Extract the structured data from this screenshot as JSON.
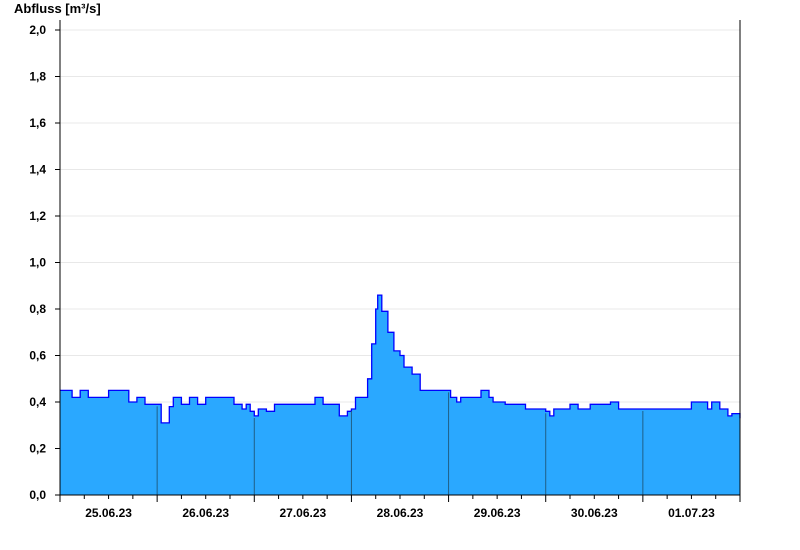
{
  "chart_data": {
    "type": "area",
    "ylabel": "Abfluss [m³/s]",
    "ylim": [
      0,
      2.0
    ],
    "yticks": [
      "0,0",
      "0,2",
      "0,4",
      "0,6",
      "0,8",
      "1,0",
      "1,2",
      "1,4",
      "1,6",
      "1,8",
      "2,0"
    ],
    "xlim": [
      "2023-06-25T00:00",
      "2023-07-02T00:00"
    ],
    "xticks": [
      "25.06.23",
      "26.06.23",
      "27.06.23",
      "28.06.23",
      "29.06.23",
      "30.06.23",
      "01.07.23"
    ],
    "grid": true,
    "fill_color": "#2aa8ff",
    "line_color": "#0000ff",
    "series": [
      {
        "points": [
          [
            "2023-06-25T00:00",
            0.45
          ],
          [
            "2023-06-25T03:00",
            0.42
          ],
          [
            "2023-06-25T05:00",
            0.45
          ],
          [
            "2023-06-25T07:00",
            0.42
          ],
          [
            "2023-06-25T10:00",
            0.42
          ],
          [
            "2023-06-25T12:00",
            0.45
          ],
          [
            "2023-06-25T16:00",
            0.45
          ],
          [
            "2023-06-25T17:00",
            0.4
          ],
          [
            "2023-06-25T19:00",
            0.42
          ],
          [
            "2023-06-25T21:00",
            0.39
          ],
          [
            "2023-06-25T24:00",
            0.39
          ],
          [
            "2023-06-26T01:00",
            0.31
          ],
          [
            "2023-06-26T03:00",
            0.38
          ],
          [
            "2023-06-26T04:00",
            0.42
          ],
          [
            "2023-06-26T06:00",
            0.39
          ],
          [
            "2023-06-26T08:00",
            0.42
          ],
          [
            "2023-06-26T10:00",
            0.39
          ],
          [
            "2023-06-26T12:00",
            0.42
          ],
          [
            "2023-06-26T18:00",
            0.42
          ],
          [
            "2023-06-26T19:00",
            0.39
          ],
          [
            "2023-06-26T21:00",
            0.37
          ],
          [
            "2023-06-26T22:00",
            0.39
          ],
          [
            "2023-06-26T23:00",
            0.36
          ],
          [
            "2023-06-27T00:00",
            0.34
          ],
          [
            "2023-06-27T01:00",
            0.37
          ],
          [
            "2023-06-27T03:00",
            0.36
          ],
          [
            "2023-06-27T05:00",
            0.39
          ],
          [
            "2023-06-27T14:00",
            0.39
          ],
          [
            "2023-06-27T15:00",
            0.42
          ],
          [
            "2023-06-27T17:00",
            0.39
          ],
          [
            "2023-06-27T20:00",
            0.39
          ],
          [
            "2023-06-27T21:00",
            0.34
          ],
          [
            "2023-06-27T23:00",
            0.36
          ],
          [
            "2023-06-28T00:00",
            0.37
          ],
          [
            "2023-06-28T01:00",
            0.42
          ],
          [
            "2023-06-28T03:00",
            0.42
          ],
          [
            "2023-06-28T04:00",
            0.5
          ],
          [
            "2023-06-28T05:00",
            0.65
          ],
          [
            "2023-06-28T06:00",
            0.8
          ],
          [
            "2023-06-28T06:30",
            0.86
          ],
          [
            "2023-06-28T07:30",
            0.79
          ],
          [
            "2023-06-28T09:00",
            0.7
          ],
          [
            "2023-06-28T10:30",
            0.62
          ],
          [
            "2023-06-28T12:00",
            0.6
          ],
          [
            "2023-06-28T13:00",
            0.55
          ],
          [
            "2023-06-28T15:00",
            0.52
          ],
          [
            "2023-06-28T17:00",
            0.45
          ],
          [
            "2023-06-28T24:00",
            0.45
          ],
          [
            "2023-06-29T00:30",
            0.42
          ],
          [
            "2023-06-29T02:00",
            0.4
          ],
          [
            "2023-06-29T03:00",
            0.42
          ],
          [
            "2023-06-29T07:00",
            0.42
          ],
          [
            "2023-06-29T08:00",
            0.45
          ],
          [
            "2023-06-29T10:00",
            0.42
          ],
          [
            "2023-06-29T11:00",
            0.4
          ],
          [
            "2023-06-29T14:00",
            0.39
          ],
          [
            "2023-06-29T18:00",
            0.39
          ],
          [
            "2023-06-29T19:00",
            0.37
          ],
          [
            "2023-06-29T23:00",
            0.37
          ],
          [
            "2023-06-30T00:00",
            0.36
          ],
          [
            "2023-06-30T01:00",
            0.34
          ],
          [
            "2023-06-30T02:00",
            0.37
          ],
          [
            "2023-06-30T05:00",
            0.37
          ],
          [
            "2023-06-30T06:00",
            0.39
          ],
          [
            "2023-06-30T08:00",
            0.37
          ],
          [
            "2023-06-30T11:00",
            0.39
          ],
          [
            "2023-06-30T15:00",
            0.39
          ],
          [
            "2023-06-30T16:00",
            0.4
          ],
          [
            "2023-06-30T18:00",
            0.37
          ],
          [
            "2023-07-01T11:00",
            0.37
          ],
          [
            "2023-07-01T12:00",
            0.4
          ],
          [
            "2023-07-01T15:00",
            0.4
          ],
          [
            "2023-07-01T16:00",
            0.37
          ],
          [
            "2023-07-01T17:00",
            0.4
          ],
          [
            "2023-07-01T19:00",
            0.37
          ],
          [
            "2023-07-01T21:00",
            0.34
          ],
          [
            "2023-07-01T22:00",
            0.35
          ],
          [
            "2023-07-01T23:30",
            0.35
          ],
          [
            "2023-07-02T00:00",
            0.33
          ]
        ]
      }
    ]
  }
}
